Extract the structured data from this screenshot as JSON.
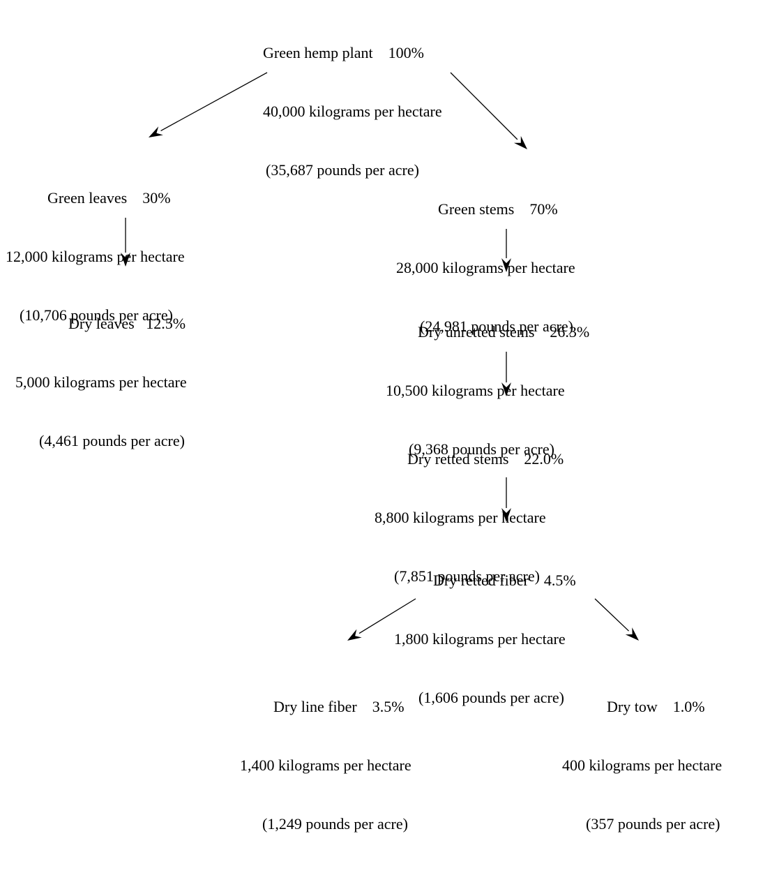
{
  "nodes": {
    "green_hemp_plant": {
      "name": "Green hemp plant",
      "percent": "100%",
      "metric": "40,000 kilograms per hectare",
      "imperial": "(35,687 pounds per acre)"
    },
    "green_leaves": {
      "name": "Green leaves",
      "percent": "30%",
      "metric": "12,000 kilograms per hectare",
      "imperial": "(10,706 pounds per acre)"
    },
    "dry_leaves": {
      "name": "Dry leaves",
      "percent": "12.5%",
      "metric": "5,000 kilograms per hectare",
      "imperial": "(4,461 pounds per acre)"
    },
    "green_stems": {
      "name": "Green stems",
      "percent": "70%",
      "metric": "28,000 kilograms per hectare",
      "imperial": "(24,981 pounds per acre)"
    },
    "dry_unretted_stems": {
      "name": "Dry unretted stems",
      "percent": "26.3%",
      "metric": "10,500 kilograms per hectare",
      "imperial": "(9,368 pounds per acre)"
    },
    "dry_retted_stems": {
      "name": "Dry retted stems",
      "percent": "22.0%",
      "metric": "8,800 kilograms per hectare",
      "imperial": "(7,851 pounds per acre)"
    },
    "dry_retted_fiber": {
      "name": "Dry retted fiber",
      "percent": "4.5%",
      "metric": "1,800 kilograms per hectare",
      "imperial": "(1,606 pounds per acre)"
    },
    "dry_line_fiber": {
      "name": "Dry line fiber",
      "percent": "3.5%",
      "metric": "1,400 kilograms per hectare",
      "imperial": "(1,249 pounds per acre)"
    },
    "dry_tow": {
      "name": "Dry tow",
      "percent": "1.0%",
      "metric": "400 kilograms per hectare",
      "imperial": "(357 pounds per acre)"
    }
  },
  "edges": [
    {
      "from": "green_hemp_plant",
      "to": "green_leaves"
    },
    {
      "from": "green_hemp_plant",
      "to": "green_stems"
    },
    {
      "from": "green_leaves",
      "to": "dry_leaves"
    },
    {
      "from": "green_stems",
      "to": "dry_unretted_stems"
    },
    {
      "from": "dry_unretted_stems",
      "to": "dry_retted_stems"
    },
    {
      "from": "dry_retted_stems",
      "to": "dry_retted_fiber"
    },
    {
      "from": "dry_retted_fiber",
      "to": "dry_line_fiber"
    },
    {
      "from": "dry_retted_fiber",
      "to": "dry_tow"
    }
  ]
}
